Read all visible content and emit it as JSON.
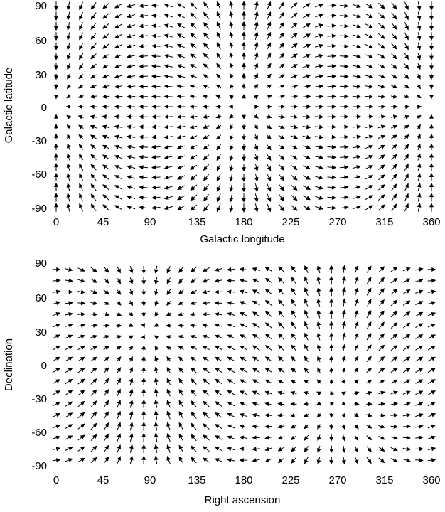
{
  "chart_data": [
    {
      "type": "quiver",
      "title": "",
      "xlabel": "Galactic longitude",
      "ylabel": "Galactic latitude",
      "xlim": [
        0,
        360
      ],
      "ylim": [
        -90,
        90
      ],
      "xticks": [
        "0",
        "45",
        "90",
        "135",
        "180",
        "225",
        "270",
        "315",
        "360"
      ],
      "yticks": [
        "-90",
        "-60",
        "-30",
        "0",
        "30",
        "60",
        "90"
      ],
      "grid": false,
      "field": "galactic",
      "x_spacing": 12,
      "y_spacing": 9,
      "x_start": 0,
      "y_start": -90,
      "pole_lon": 180,
      "pole_lat": 0
    },
    {
      "type": "quiver",
      "title": "",
      "xlabel": "Right ascension",
      "ylabel": "Declination",
      "xlim": [
        0,
        360
      ],
      "ylim": [
        -90,
        90
      ],
      "xticks": [
        "0",
        "45",
        "90",
        "135",
        "180",
        "225",
        "270",
        "315",
        "360"
      ],
      "yticks": [
        "-90",
        "-60",
        "-30",
        "0",
        "30",
        "60",
        "90"
      ],
      "grid": false,
      "field": "equatorial",
      "x_spacing": 12,
      "y_spacing": 10,
      "x_start": 0,
      "y_start": -85,
      "pole_ra": 86,
      "pole_dec": 30,
      "antipode_ra": 266,
      "antipode_dec": -30
    }
  ]
}
